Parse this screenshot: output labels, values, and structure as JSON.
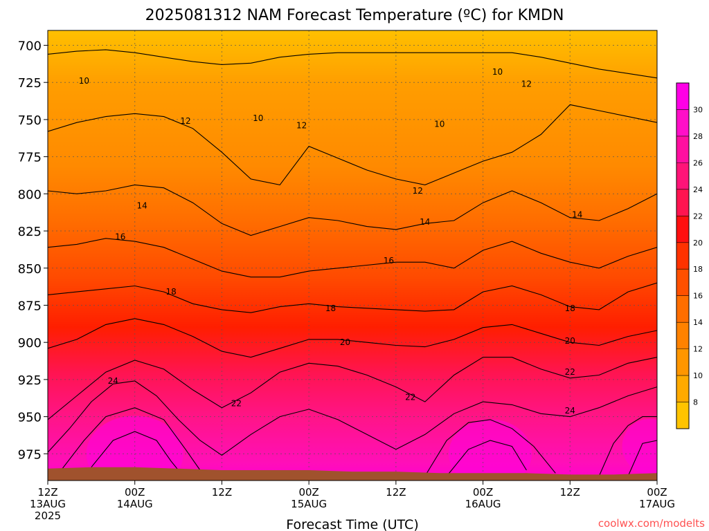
{
  "chart_data": {
    "type": "heatmap",
    "title": "2025081312 NAM Forecast Temperature (ºC) for KMDN",
    "xlabel": "Forecast Time (UTC)",
    "ylabel": "",
    "watermark": "coolwx.com/modelts",
    "x_ticks": [
      {
        "hour": 0,
        "line1": "12Z",
        "line2": "13AUG",
        "line3": "2025"
      },
      {
        "hour": 12,
        "line1": "00Z",
        "line2": "14AUG",
        "line3": ""
      },
      {
        "hour": 24,
        "line1": "12Z",
        "line2": "",
        "line3": ""
      },
      {
        "hour": 36,
        "line1": "00Z",
        "line2": "15AUG",
        "line3": ""
      },
      {
        "hour": 48,
        "line1": "12Z",
        "line2": "",
        "line3": ""
      },
      {
        "hour": 60,
        "line1": "00Z",
        "line2": "16AUG",
        "line3": ""
      },
      {
        "hour": 72,
        "line1": "12Z",
        "line2": "",
        "line3": ""
      },
      {
        "hour": 84,
        "line1": "00Z",
        "line2": "17AUG",
        "line3": ""
      }
    ],
    "xlim": [
      0,
      84
    ],
    "y_ticks": [
      700,
      725,
      750,
      775,
      800,
      825,
      850,
      875,
      900,
      925,
      950,
      975
    ],
    "ylim": [
      690,
      993
    ],
    "grid": true,
    "colorbar": {
      "levels": [
        6,
        8,
        10,
        12,
        14,
        16,
        18,
        20,
        22,
        24,
        26,
        28,
        30,
        32
      ],
      "labels": [
        8,
        10,
        12,
        14,
        16,
        18,
        20,
        22,
        24,
        26,
        28,
        30
      ],
      "colors": [
        "#ffc400",
        "#ffaa00",
        "#ff9600",
        "#ff8200",
        "#ff6e00",
        "#ff5000",
        "#ff3200",
        "#ff0f0f",
        "#ff1450",
        "#ff1478",
        "#ff0fa0",
        "#ff0fc8",
        "#ff00e6"
      ]
    },
    "contour_lines": [
      {
        "level": 10,
        "label": "10",
        "points": [
          [
            0,
            706
          ],
          [
            4,
            704
          ],
          [
            8,
            703
          ],
          [
            12,
            705
          ],
          [
            16,
            708
          ],
          [
            20,
            711
          ],
          [
            24,
            713
          ],
          [
            28,
            712
          ],
          [
            32,
            708
          ],
          [
            36,
            706
          ],
          [
            40,
            705
          ],
          [
            44,
            705
          ],
          [
            48,
            705
          ],
          [
            52,
            705
          ],
          [
            56,
            705
          ],
          [
            60,
            705
          ],
          [
            64,
            705
          ],
          [
            68,
            708
          ],
          [
            72,
            712
          ],
          [
            76,
            716
          ],
          [
            80,
            719
          ],
          [
            84,
            722
          ]
        ],
        "labels_at": [
          [
            5,
            724
          ],
          [
            29,
            749
          ],
          [
            54,
            753
          ],
          [
            62,
            718
          ]
        ]
      },
      {
        "level": 12,
        "label": "12",
        "points": [
          [
            0,
            758
          ],
          [
            4,
            752
          ],
          [
            8,
            748
          ],
          [
            12,
            746
          ],
          [
            16,
            748
          ],
          [
            20,
            756
          ],
          [
            24,
            772
          ],
          [
            28,
            790
          ],
          [
            32,
            794
          ],
          [
            36,
            768
          ],
          [
            40,
            776
          ],
          [
            44,
            784
          ],
          [
            48,
            790
          ],
          [
            52,
            794
          ],
          [
            56,
            786
          ],
          [
            60,
            778
          ],
          [
            64,
            772
          ],
          [
            68,
            760
          ],
          [
            72,
            740
          ],
          [
            76,
            744
          ],
          [
            80,
            748
          ],
          [
            84,
            752
          ]
        ],
        "labels_at": [
          [
            19,
            751
          ],
          [
            35,
            754
          ],
          [
            51,
            798
          ],
          [
            66,
            726
          ]
        ]
      },
      {
        "level": 14,
        "label": "14",
        "points": [
          [
            0,
            798
          ],
          [
            4,
            800
          ],
          [
            8,
            798
          ],
          [
            12,
            794
          ],
          [
            16,
            796
          ],
          [
            20,
            806
          ],
          [
            24,
            820
          ],
          [
            28,
            828
          ],
          [
            32,
            822
          ],
          [
            36,
            816
          ],
          [
            40,
            818
          ],
          [
            44,
            822
          ],
          [
            48,
            824
          ],
          [
            52,
            820
          ],
          [
            56,
            818
          ],
          [
            60,
            806
          ],
          [
            64,
            798
          ],
          [
            68,
            806
          ],
          [
            72,
            816
          ],
          [
            76,
            818
          ],
          [
            80,
            810
          ],
          [
            84,
            800
          ]
        ],
        "labels_at": [
          [
            13,
            808
          ],
          [
            52,
            819
          ],
          [
            73,
            814
          ]
        ]
      },
      {
        "level": 16,
        "label": "16",
        "points": [
          [
            0,
            836
          ],
          [
            4,
            834
          ],
          [
            8,
            830
          ],
          [
            12,
            832
          ],
          [
            16,
            836
          ],
          [
            20,
            844
          ],
          [
            24,
            852
          ],
          [
            28,
            856
          ],
          [
            32,
            856
          ],
          [
            36,
            852
          ],
          [
            40,
            850
          ],
          [
            44,
            848
          ],
          [
            48,
            846
          ],
          [
            52,
            846
          ],
          [
            56,
            850
          ],
          [
            60,
            838
          ],
          [
            64,
            832
          ],
          [
            68,
            840
          ],
          [
            72,
            846
          ],
          [
            76,
            850
          ],
          [
            80,
            842
          ],
          [
            84,
            836
          ]
        ],
        "labels_at": [
          [
            10,
            829
          ],
          [
            47,
            845
          ]
        ]
      },
      {
        "level": 18,
        "label": "18",
        "points": [
          [
            0,
            868
          ],
          [
            4,
            866
          ],
          [
            8,
            864
          ],
          [
            12,
            862
          ],
          [
            16,
            866
          ],
          [
            20,
            874
          ],
          [
            24,
            878
          ],
          [
            28,
            880
          ],
          [
            32,
            876
          ],
          [
            36,
            874
          ],
          [
            40,
            876
          ],
          [
            44,
            877
          ],
          [
            48,
            878
          ],
          [
            52,
            879
          ],
          [
            56,
            878
          ],
          [
            60,
            866
          ],
          [
            64,
            862
          ],
          [
            68,
            868
          ],
          [
            72,
            876
          ],
          [
            76,
            878
          ],
          [
            80,
            866
          ],
          [
            84,
            860
          ]
        ],
        "labels_at": [
          [
            17,
            866
          ],
          [
            39,
            877
          ],
          [
            72,
            877
          ]
        ]
      },
      {
        "level": 20,
        "label": "20",
        "points": [
          [
            0,
            904
          ],
          [
            4,
            898
          ],
          [
            8,
            888
          ],
          [
            12,
            884
          ],
          [
            16,
            888
          ],
          [
            20,
            896
          ],
          [
            24,
            906
          ],
          [
            28,
            910
          ],
          [
            32,
            904
          ],
          [
            36,
            898
          ],
          [
            40,
            898
          ],
          [
            44,
            900
          ],
          [
            48,
            902
          ],
          [
            52,
            903
          ],
          [
            56,
            898
          ],
          [
            60,
            890
          ],
          [
            64,
            888
          ],
          [
            68,
            894
          ],
          [
            72,
            900
          ],
          [
            76,
            902
          ],
          [
            80,
            896
          ],
          [
            84,
            892
          ]
        ],
        "labels_at": [
          [
            41,
            900
          ],
          [
            72,
            899
          ]
        ]
      },
      {
        "level": 22,
        "label": "22",
        "points": [
          [
            0,
            952
          ],
          [
            4,
            936
          ],
          [
            8,
            920
          ],
          [
            12,
            912
          ],
          [
            16,
            918
          ],
          [
            20,
            932
          ],
          [
            24,
            944
          ],
          [
            28,
            934
          ],
          [
            32,
            920
          ],
          [
            36,
            914
          ],
          [
            40,
            916
          ],
          [
            44,
            922
          ],
          [
            48,
            930
          ],
          [
            52,
            940
          ],
          [
            56,
            922
          ],
          [
            60,
            910
          ],
          [
            64,
            910
          ],
          [
            68,
            918
          ],
          [
            72,
            924
          ],
          [
            76,
            922
          ],
          [
            80,
            914
          ],
          [
            84,
            910
          ]
        ],
        "labels_at": [
          [
            26,
            941
          ],
          [
            50,
            937
          ],
          [
            72,
            920
          ]
        ]
      },
      {
        "level": 24,
        "label": "24",
        "points": [
          [
            0,
            974
          ],
          [
            3,
            958
          ],
          [
            6,
            940
          ],
          [
            9,
            928
          ],
          [
            12,
            926
          ],
          [
            15,
            936
          ],
          [
            18,
            952
          ],
          [
            21,
            966
          ],
          [
            24,
            976
          ],
          [
            28,
            962
          ],
          [
            32,
            950
          ],
          [
            36,
            945
          ],
          [
            40,
            952
          ],
          [
            44,
            962
          ],
          [
            48,
            972
          ],
          [
            52,
            962
          ],
          [
            56,
            948
          ],
          [
            60,
            940
          ],
          [
            64,
            942
          ],
          [
            68,
            948
          ],
          [
            72,
            950
          ],
          [
            76,
            944
          ],
          [
            80,
            936
          ],
          [
            84,
            930
          ]
        ],
        "labels_at": [
          [
            9,
            926
          ],
          [
            72,
            946
          ]
        ]
      },
      {
        "level": 26,
        "label": "",
        "points": [
          [
            2,
            985
          ],
          [
            5,
            966
          ],
          [
            8,
            950
          ],
          [
            12,
            944
          ],
          [
            16,
            952
          ],
          [
            19,
            972
          ],
          [
            21,
            986
          ]
        ],
        "labels_at": []
      },
      {
        "level": 28,
        "label": "",
        "points": [
          [
            6,
            984
          ],
          [
            9,
            966
          ],
          [
            12,
            960
          ],
          [
            15,
            966
          ],
          [
            17,
            980
          ],
          [
            18,
            986
          ]
        ],
        "labels_at": []
      },
      {
        "level": 26,
        "label": "",
        "points": [
          [
            52,
            990
          ],
          [
            55,
            966
          ],
          [
            58,
            954
          ],
          [
            61,
            952
          ],
          [
            64,
            958
          ],
          [
            67,
            970
          ],
          [
            70,
            988
          ]
        ],
        "labels_at": []
      },
      {
        "level": 28,
        "label": "",
        "points": [
          [
            55,
            990
          ],
          [
            58,
            972
          ],
          [
            61,
            966
          ],
          [
            64,
            970
          ],
          [
            66,
            986
          ]
        ],
        "labels_at": []
      },
      {
        "level": 26,
        "label": "",
        "points": [
          [
            76,
            990
          ],
          [
            78,
            968
          ],
          [
            80,
            956
          ],
          [
            82,
            950
          ],
          [
            84,
            950
          ]
        ],
        "labels_at": []
      },
      {
        "level": 28,
        "label": "",
        "points": [
          [
            80,
            990
          ],
          [
            82,
            968
          ],
          [
            84,
            966
          ]
        ],
        "labels_at": []
      }
    ],
    "surface_pressure": [
      [
        0,
        985
      ],
      [
        6,
        984
      ],
      [
        12,
        984
      ],
      [
        18,
        985
      ],
      [
        24,
        986
      ],
      [
        30,
        986
      ],
      [
        36,
        986
      ],
      [
        42,
        987
      ],
      [
        48,
        987
      ],
      [
        54,
        988
      ],
      [
        60,
        988
      ],
      [
        66,
        988
      ],
      [
        72,
        989
      ],
      [
        78,
        989
      ],
      [
        84,
        988
      ]
    ]
  }
}
